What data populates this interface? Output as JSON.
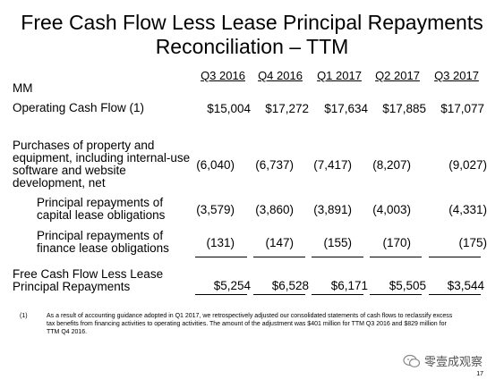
{
  "title_line1": "Free Cash Flow Less Lease Principal Repayments",
  "title_line2": "Reconciliation – TTM",
  "units": "MM",
  "columns": [
    "Q3 2016",
    "Q4 2016",
    "Q1 2017",
    "Q2 2017",
    "Q3 2017"
  ],
  "rows": [
    {
      "label_lines": [
        "Operating Cash Flow (1)"
      ],
      "values": [
        "$15,004",
        "$17,272",
        "$17,634",
        "$17,885",
        "$17,077"
      ]
    },
    {
      "label_lines": [
        "Purchases of property and",
        "equipment, including internal-use",
        "software and website",
        "development, net"
      ],
      "values": [
        "(6,040)",
        "(6,737)",
        "(7,417)",
        "(8,207)",
        "(9,027)"
      ]
    },
    {
      "label_lines": [
        "Principal repayments of",
        "capital lease obligations"
      ],
      "values": [
        "(3,579)",
        "(3,860)",
        "(3,891)",
        "(4,003)",
        "(4,331)"
      ]
    },
    {
      "label_lines": [
        "Principal repayments of",
        "finance lease obligations"
      ],
      "values": [
        "(131)",
        "(147)",
        "(155)",
        "(170)",
        "(175)"
      ]
    },
    {
      "label_lines": [
        "Free Cash Flow Less Lease",
        "Principal Repayments"
      ],
      "values": [
        "$5,254",
        "$6,528",
        "$6,171",
        "$5,505",
        "$3,544"
      ]
    }
  ],
  "footnote": {
    "marker": "(1)",
    "text": "As a result of accounting guidance adopted in Q1 2017, we retrospectively adjusted our consolidated statements of cash flows to reclassify excess tax benefits from financing activities to operating activities. The amount of the adjustment was $401 million for TTM Q3 2016 and $829 million for TTM Q4 2016."
  },
  "page_number": "17",
  "watermark": {
    "text": "零壹成观察",
    "icon": "wechat-icon"
  }
}
